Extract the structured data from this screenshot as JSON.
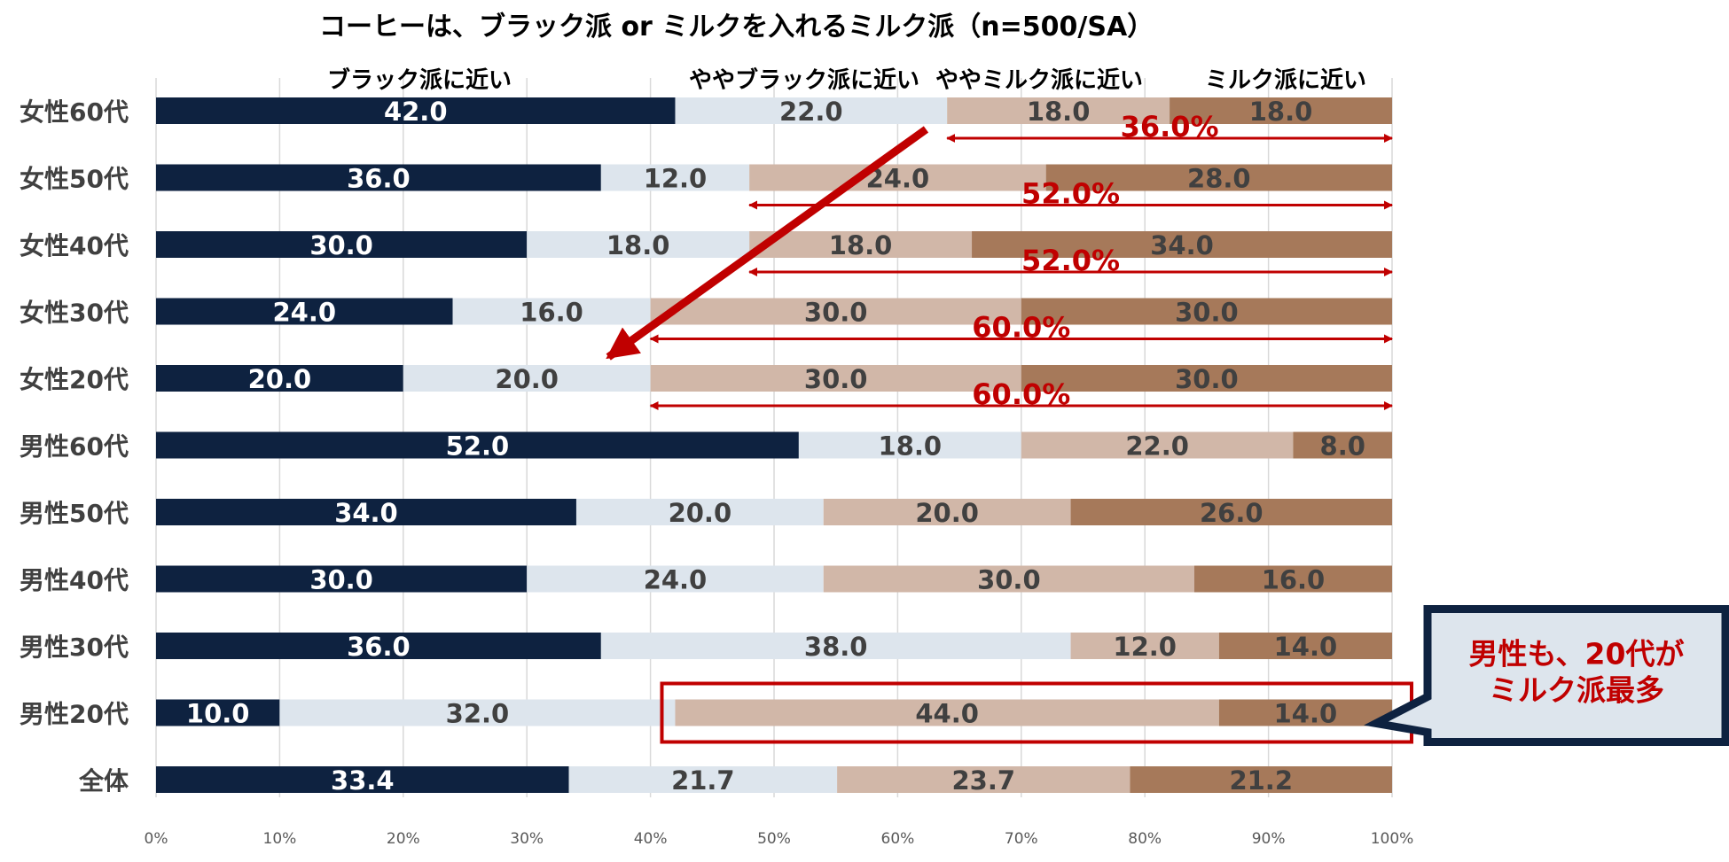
{
  "chart_data": {
    "type": "bar",
    "orientation": "horizontal",
    "stacked": true,
    "title": "コーヒーは、ブラック派 or ミルクを入れるミルク派（n=500/SA）",
    "categories": [
      "女性60代",
      "女性50代",
      "女性40代",
      "女性30代",
      "女性20代",
      "男性60代",
      "男性50代",
      "男性40代",
      "男性30代",
      "男性20代",
      "全体"
    ],
    "series": [
      {
        "name": "ブラック派に近い",
        "color": "#0e2240",
        "values": [
          42.0,
          36.0,
          30.0,
          24.0,
          20.0,
          52.0,
          34.0,
          30.0,
          36.0,
          10.0,
          33.4
        ]
      },
      {
        "name": "ややブラック派に近い",
        "color": "#dde5ed",
        "values": [
          22.0,
          12.0,
          18.0,
          16.0,
          20.0,
          18.0,
          20.0,
          24.0,
          38.0,
          32.0,
          21.7
        ]
      },
      {
        "name": "ややミルク派に近い",
        "color": "#d1b7a8",
        "values": [
          18.0,
          24.0,
          18.0,
          30.0,
          30.0,
          22.0,
          20.0,
          30.0,
          12.0,
          44.0,
          23.7
        ]
      },
      {
        "name": "ミルク派に近い",
        "color": "#a6795a",
        "values": [
          18.0,
          28.0,
          34.0,
          30.0,
          30.0,
          8.0,
          26.0,
          16.0,
          14.0,
          14.0,
          21.2
        ]
      }
    ],
    "value_labels": [
      [
        "42.0",
        "22.0",
        "18.0",
        "18.0"
      ],
      [
        "36.0",
        "12.0",
        "24.0",
        "28.0"
      ],
      [
        "30.0",
        "18.0",
        "18.0",
        "34.0"
      ],
      [
        "24.0",
        "16.0",
        "30.0",
        "30.0"
      ],
      [
        "20.0",
        "20.0",
        "30.0",
        "30.0"
      ],
      [
        "52.0",
        "18.0",
        "22.0",
        "8.0"
      ],
      [
        "34.0",
        "20.0",
        "20.0",
        "26.0"
      ],
      [
        "30.0",
        "24.0",
        "30.0",
        "16.0"
      ],
      [
        "36.0",
        "38.0",
        "12.0",
        "14.0"
      ],
      [
        "10.0",
        "32.0",
        "44.0",
        "14.0"
      ],
      [
        "33.4",
        "21.7",
        "23.7",
        "21.2"
      ]
    ],
    "xlim": [
      0,
      100
    ],
    "x_ticks": [
      0,
      10,
      20,
      30,
      40,
      50,
      60,
      70,
      80,
      90,
      100
    ],
    "x_tick_labels": [
      "0%",
      "10%",
      "20%",
      "30%",
      "40%",
      "50%",
      "60%",
      "70%",
      "80%",
      "90%",
      "100%"
    ],
    "grid": true,
    "legend_position": "top",
    "annotations": {
      "milk_share_arrows": [
        {
          "category": "女性60代",
          "from": 64,
          "to": 100,
          "label": "36.0%"
        },
        {
          "category": "女性50代",
          "from": 48,
          "to": 100,
          "label": "52.0%"
        },
        {
          "category": "女性40代",
          "from": 48,
          "to": 100,
          "label": "52.0%"
        },
        {
          "category": "女性30代",
          "from": 40,
          "to": 100,
          "label": "60.0%"
        },
        {
          "category": "女性20代",
          "from": 40,
          "to": 100,
          "label": "60.0%"
        }
      ],
      "trend_arrow": {
        "from_category": "女性60代",
        "to_category": "女性20代"
      },
      "highlight": {
        "category": "男性20代",
        "from": 42,
        "to": 100
      },
      "callout_lines": [
        "男性も、20代が",
        "ミルク派最多"
      ],
      "colors": {
        "annotation": "#c00000",
        "callout_border": "#0e2240",
        "callout_fill": "#dde5ed"
      }
    }
  }
}
